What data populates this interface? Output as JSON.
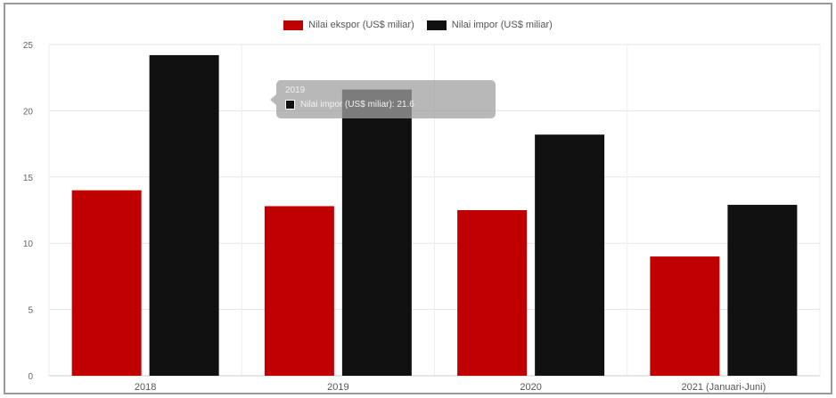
{
  "chart_data": {
    "type": "bar",
    "categories": [
      "2018",
      "2019",
      "2020",
      "2021 (Januari-Juni)"
    ],
    "series": [
      {
        "name": "Nilai ekspor (US$ miliar)",
        "color": "#c00000",
        "values": [
          14.0,
          12.8,
          12.5,
          9.0
        ]
      },
      {
        "name": "Nilai impor (US$ miliar)",
        "color": "#111111",
        "values": [
          24.2,
          21.6,
          18.2,
          12.9
        ]
      }
    ],
    "yticks": [
      "0",
      "5",
      "10",
      "15",
      "20",
      "25"
    ],
    "ylim": [
      0,
      25
    ],
    "grid": true,
    "legend_position": "top"
  },
  "tooltip": {
    "title": "2019",
    "label": "Nilai impor (US$ miliar): 21.6",
    "swatch_color": "#111111"
  }
}
